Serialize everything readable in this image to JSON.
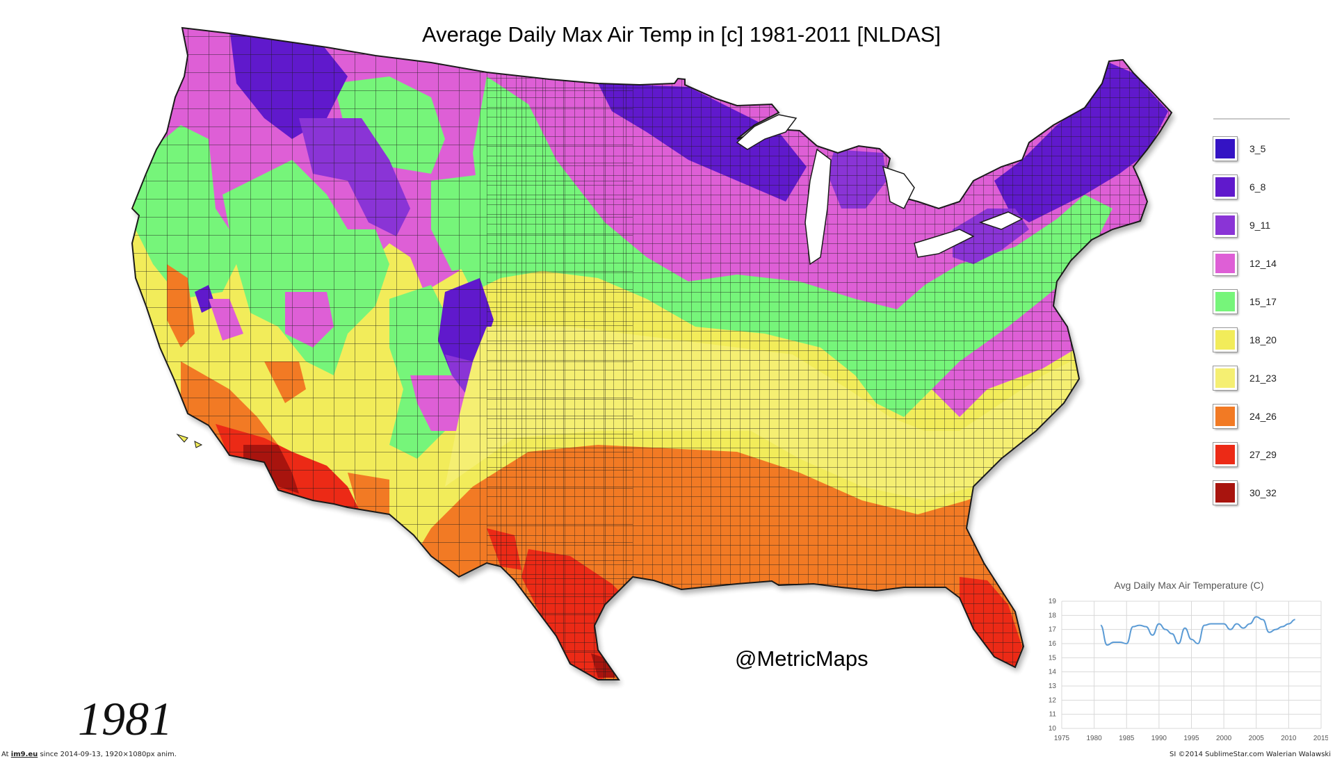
{
  "title": "Average Daily Max Air Temp in [c] 1981-2011 [NLDAS]",
  "year": "1981",
  "watermark": "@MetricMaps",
  "footer": {
    "left_prefix": "At ",
    "left_link": "im9.eu",
    "left_suffix": " since 2014-09-13, 1920×1080px anim.",
    "right": "SI ©2014 SublimeStar.com Walerian Walawski"
  },
  "map": {
    "subject": "Contiguous United States counties, color-coded by temperature class",
    "border_color": "#1a1a1a"
  },
  "legend": {
    "items": [
      {
        "label": "3_5",
        "color": "#3413c4"
      },
      {
        "label": "6_8",
        "color": "#6019cc"
      },
      {
        "label": "9_11",
        "color": "#8a34d6"
      },
      {
        "label": "12_14",
        "color": "#de5fd6"
      },
      {
        "label": "15_17",
        "color": "#76f57a"
      },
      {
        "label": "18_20",
        "color": "#f2ec5a"
      },
      {
        "label": "21_23",
        "color": "#f5ef72"
      },
      {
        "label": "24_26",
        "color": "#f27a24"
      },
      {
        "label": "27_29",
        "color": "#ec2a16"
      },
      {
        "label": "30_32",
        "color": "#a8140e"
      }
    ]
  },
  "chart_data": {
    "type": "line",
    "title": "Avg Daily Max Air Temperature (C)",
    "xlabel": "",
    "ylabel": "",
    "xlim": [
      1975,
      2015
    ],
    "ylim": [
      10,
      19
    ],
    "x_ticks": [
      1975,
      1980,
      1985,
      1990,
      1995,
      2000,
      2005,
      2010,
      2015
    ],
    "y_ticks": [
      10,
      11,
      12,
      13,
      14,
      15,
      16,
      17,
      18,
      19
    ],
    "grid": true,
    "line_color": "#5b9bd5",
    "series": [
      {
        "x": [
          1981,
          1982,
          1983,
          1984,
          1985,
          1986,
          1987,
          1988,
          1989,
          1990,
          1991,
          1992,
          1993,
          1994,
          1995,
          1996,
          1997,
          1998,
          1999,
          2000,
          2001,
          2002,
          2003,
          2004,
          2005,
          2006,
          2007,
          2008,
          2009,
          2010,
          2011
        ],
        "values": [
          17.3,
          15.9,
          16.1,
          16.1,
          16.0,
          17.2,
          17.3,
          17.2,
          16.6,
          17.4,
          17.0,
          16.7,
          16.0,
          17.1,
          16.3,
          16.0,
          17.3,
          17.4,
          17.4,
          17.4,
          17.0,
          17.4,
          17.1,
          17.4,
          17.9,
          17.7,
          16.8,
          17.0,
          17.2,
          17.4,
          17.7
        ]
      }
    ]
  }
}
